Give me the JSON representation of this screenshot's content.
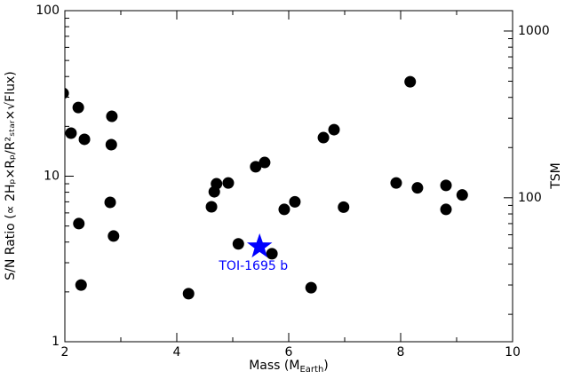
{
  "chart_data": {
    "type": "scatter",
    "xlabel": {
      "text": "Mass (M",
      "sub": "Earth",
      "end": ")"
    },
    "ylabel": "S/N Ratio (∝ 2Hₚ×Rₚ/R²ₛₜₐᵣ×√Flux)",
    "y2label": "TSM",
    "xlim": [
      2,
      10
    ],
    "xticks": [
      2,
      4,
      6,
      8,
      10
    ],
    "ylim": [
      1,
      100
    ],
    "yticks": [
      1,
      10,
      100
    ],
    "yscale": "log",
    "y2lim": [
      13.7,
      1325
    ],
    "y2ticks": [
      100,
      1000
    ],
    "y2scale": "log",
    "series": [
      {
        "name": null,
        "color": "#000000",
        "marker": "circle",
        "x": [
          1.97,
          2.11,
          2.24,
          2.35,
          2.84,
          2.83,
          2.81,
          2.25,
          2.87,
          2.29,
          4.21,
          4.62,
          4.67,
          4.71,
          4.92,
          5.1,
          5.41,
          5.57,
          5.7,
          5.92,
          6.11,
          6.4,
          6.62,
          6.81,
          6.98,
          7.92,
          8.17,
          8.3,
          8.81,
          8.81,
          9.1
        ],
        "values": [
          31.7,
          18.2,
          26.0,
          16.7,
          23.0,
          15.5,
          6.95,
          5.17,
          4.35,
          2.2,
          1.95,
          6.53,
          8.05,
          9.0,
          9.1,
          3.9,
          11.4,
          12.1,
          3.4,
          6.3,
          7.0,
          2.12,
          17.1,
          19.1,
          6.5,
          9.1,
          37.2,
          8.5,
          8.8,
          6.3,
          7.7
        ]
      },
      {
        "name": "TOI-1695 b",
        "color": "#0000ff",
        "marker": "star",
        "x": [
          5.48
        ],
        "values": [
          3.75
        ]
      }
    ]
  }
}
